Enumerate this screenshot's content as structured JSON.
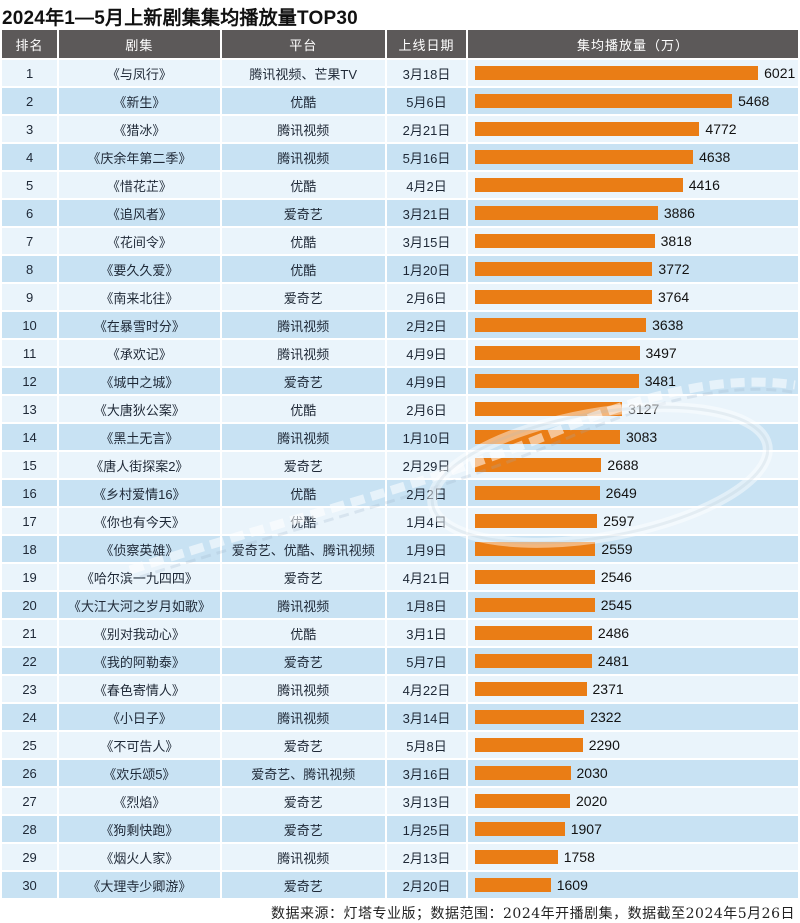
{
  "title": "2024年1—5月上新剧集集均播放量TOP30",
  "table": {
    "headers": [
      "排名",
      "剧集",
      "平台",
      "上线日期",
      "集均播放量（万）"
    ]
  },
  "chart_data": {
    "type": "bar",
    "title": "2024年1—5月上新剧集集均播放量TOP30",
    "value_label": "集均播放量（万）",
    "max_value": 6021,
    "orientation": "horizontal",
    "rows": [
      {
        "rank": 1,
        "title": "《与凤行》",
        "platform": "腾讯视频、芒果TV",
        "date": "3月18日",
        "value": 6021
      },
      {
        "rank": 2,
        "title": "《新生》",
        "platform": "优酷",
        "date": "5月6日",
        "value": 5468
      },
      {
        "rank": 3,
        "title": "《猎冰》",
        "platform": "腾讯视频",
        "date": "2月21日",
        "value": 4772
      },
      {
        "rank": 4,
        "title": "《庆余年第二季》",
        "platform": "腾讯视频",
        "date": "5月16日",
        "value": 4638
      },
      {
        "rank": 5,
        "title": "《惜花芷》",
        "platform": "优酷",
        "date": "4月2日",
        "value": 4416
      },
      {
        "rank": 6,
        "title": "《追风者》",
        "platform": "爱奇艺",
        "date": "3月21日",
        "value": 3886
      },
      {
        "rank": 7,
        "title": "《花间令》",
        "platform": "优酷",
        "date": "3月15日",
        "value": 3818
      },
      {
        "rank": 8,
        "title": "《要久久爱》",
        "platform": "优酷",
        "date": "1月20日",
        "value": 3772
      },
      {
        "rank": 9,
        "title": "《南来北往》",
        "platform": "爱奇艺",
        "date": "2月6日",
        "value": 3764
      },
      {
        "rank": 10,
        "title": "《在暴雪时分》",
        "platform": "腾讯视频",
        "date": "2月2日",
        "value": 3638
      },
      {
        "rank": 11,
        "title": "《承欢记》",
        "platform": "腾讯视频",
        "date": "4月9日",
        "value": 3497
      },
      {
        "rank": 12,
        "title": "《城中之城》",
        "platform": "爱奇艺",
        "date": "4月9日",
        "value": 3481
      },
      {
        "rank": 13,
        "title": "《大唐狄公案》",
        "platform": "优酷",
        "date": "2月6日",
        "value": 3127
      },
      {
        "rank": 14,
        "title": "《黑土无言》",
        "platform": "腾讯视频",
        "date": "1月10日",
        "value": 3083
      },
      {
        "rank": 15,
        "title": "《唐人街探案2》",
        "platform": "爱奇艺",
        "date": "2月29日",
        "value": 2688
      },
      {
        "rank": 16,
        "title": "《乡村爱情16》",
        "platform": "优酷",
        "date": "2月2日",
        "value": 2649
      },
      {
        "rank": 17,
        "title": "《你也有今天》",
        "platform": "优酷",
        "date": "1月4日",
        "value": 2597
      },
      {
        "rank": 18,
        "title": "《侦察英雄》",
        "platform": "爱奇艺、优酷、腾讯视频",
        "date": "1月9日",
        "value": 2559
      },
      {
        "rank": 19,
        "title": "《哈尔滨一九四四》",
        "platform": "爱奇艺",
        "date": "4月21日",
        "value": 2546
      },
      {
        "rank": 20,
        "title": "《大江大河之岁月如歌》",
        "platform": "腾讯视频",
        "date": "1月8日",
        "value": 2545
      },
      {
        "rank": 21,
        "title": "《别对我动心》",
        "platform": "优酷",
        "date": "3月1日",
        "value": 2486
      },
      {
        "rank": 22,
        "title": "《我的阿勒泰》",
        "platform": "爱奇艺",
        "date": "5月7日",
        "value": 2481
      },
      {
        "rank": 23,
        "title": "《春色寄情人》",
        "platform": "腾讯视频",
        "date": "4月22日",
        "value": 2371
      },
      {
        "rank": 24,
        "title": "《小日子》",
        "platform": "腾讯视频",
        "date": "3月14日",
        "value": 2322
      },
      {
        "rank": 25,
        "title": "《不可告人》",
        "platform": "爱奇艺",
        "date": "5月8日",
        "value": 2290
      },
      {
        "rank": 26,
        "title": "《欢乐颂5》",
        "platform": "爱奇艺、腾讯视频",
        "date": "3月16日",
        "value": 2030
      },
      {
        "rank": 27,
        "title": "《烈焰》",
        "platform": "爱奇艺",
        "date": "3月13日",
        "value": 2020
      },
      {
        "rank": 28,
        "title": "《狗剩快跑》",
        "platform": "爱奇艺",
        "date": "1月25日",
        "value": 1907
      },
      {
        "rank": 29,
        "title": "《烟火人家》",
        "platform": "腾讯视频",
        "date": "2月13日",
        "value": 1758
      },
      {
        "rank": 30,
        "title": "《大理寺少卿游》",
        "platform": "爱奇艺",
        "date": "2月20日",
        "value": 1609
      }
    ]
  },
  "footer": {
    "text": "数据来源：灯塔专业版；数据范围：2024年开播剧集，数据截至2024年5月26日"
  },
  "colors": {
    "bar_orange": "#EA7D15",
    "header_bg": "#5C5959",
    "row_light": "#EAF4FB",
    "row_dark": "#C8E2F3",
    "text_dark": "#1E2836"
  }
}
